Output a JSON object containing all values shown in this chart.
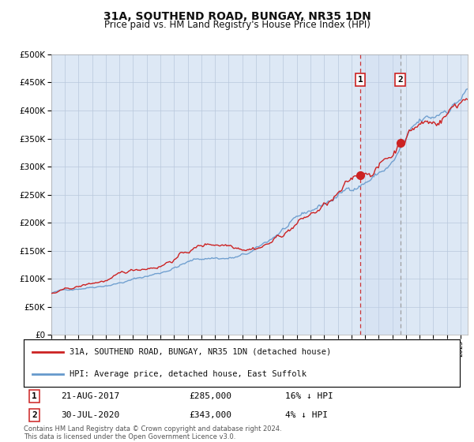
{
  "title": "31A, SOUTHEND ROAD, BUNGAY, NR35 1DN",
  "subtitle": "Price paid vs. HM Land Registry's House Price Index (HPI)",
  "legend_line1": "31A, SOUTHEND ROAD, BUNGAY, NR35 1DN (detached house)",
  "legend_line2": "HPI: Average price, detached house, East Suffolk",
  "annotation1_label": "1",
  "annotation1_date": "21-AUG-2017",
  "annotation1_price": "£285,000",
  "annotation1_diff": "16% ↓ HPI",
  "annotation2_label": "2",
  "annotation2_date": "30-JUL-2020",
  "annotation2_price": "£343,000",
  "annotation2_diff": "4% ↓ HPI",
  "footnote": "Contains HM Land Registry data © Crown copyright and database right 2024.\nThis data is licensed under the Open Government Licence v3.0.",
  "sale1_year": 2017.644,
  "sale1_value": 285000,
  "sale2_year": 2020.58,
  "sale2_value": 343000,
  "hpi_color": "#6699cc",
  "property_color": "#cc2222",
  "chart_bg": "#dde8f5",
  "fig_bg": "#ffffff",
  "ylim_min": 0,
  "ylim_max": 500000,
  "xlim_min": 1995,
  "xlim_max": 2025.5
}
